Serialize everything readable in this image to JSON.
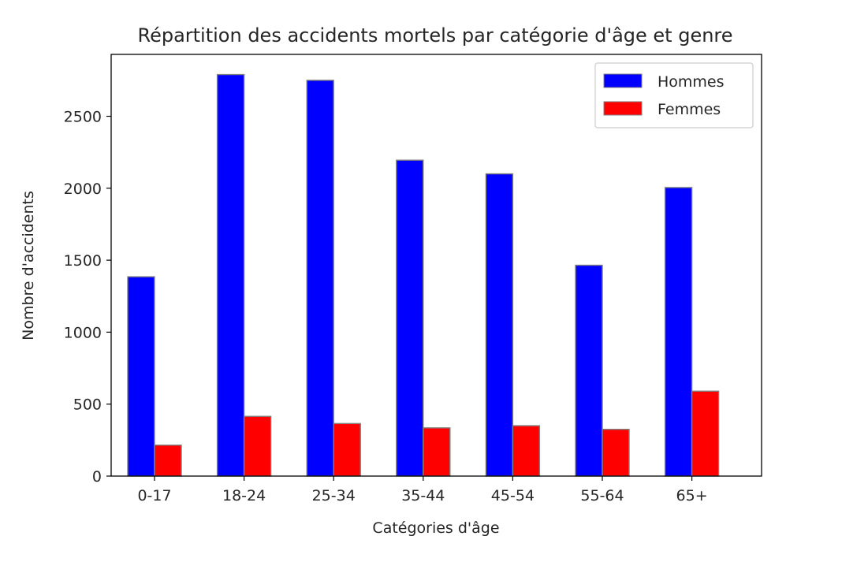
{
  "chart_data": {
    "type": "bar",
    "title": "Répartition des accidents mortels par catégorie d'âge et genre",
    "xlabel": "Catégories d'âge",
    "ylabel": "Nombre d'accidents",
    "categories": [
      "0-17",
      "18-24",
      "25-34",
      "35-44",
      "45-54",
      "55-64",
      "65+"
    ],
    "series": [
      {
        "name": "Hommes",
        "color": "#0000ff",
        "values": [
          1385,
          2790,
          2750,
          2195,
          2100,
          1465,
          2005
        ]
      },
      {
        "name": "Femmes",
        "color": "#ff0000",
        "values": [
          215,
          415,
          365,
          335,
          350,
          325,
          590
        ]
      }
    ],
    "ylim": [
      0,
      2930
    ],
    "yticks": [
      0,
      500,
      1000,
      1500,
      2000,
      2500
    ],
    "grid": false,
    "legend_position": "top-right",
    "bar_edge_color": "#808080"
  }
}
